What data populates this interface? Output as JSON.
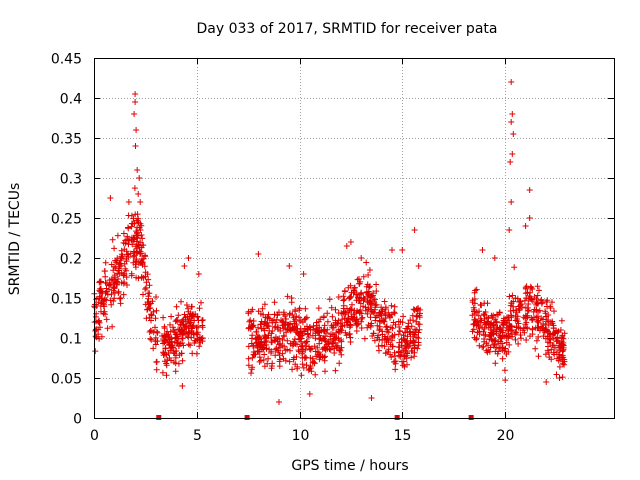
{
  "chart_data": {
    "type": "scatter",
    "title": "Day 033 of 2017, SRMTID for receiver pata",
    "xlabel": "GPS time / hours",
    "ylabel": "SRMTID / TECUs",
    "xlim": [
      0,
      25.3
    ],
    "ylim": [
      0,
      0.45
    ],
    "x_ticks": [
      0,
      5,
      10,
      15,
      20
    ],
    "x_tick_labels": [
      "0",
      "5",
      "10",
      "15",
      "20"
    ],
    "y_ticks": [
      0,
      0.05,
      0.1,
      0.15,
      0.2,
      0.25,
      0.3,
      0.35,
      0.4,
      0.45
    ],
    "y_tick_labels": [
      "0",
      "0.05",
      "0.1",
      "0.15",
      "0.2",
      "0.25",
      "0.3",
      "0.35",
      "0.4",
      "0.45"
    ],
    "grid": true,
    "marker": "+",
    "color": "#e00000",
    "gap_markers_x": [
      3.15,
      7.45,
      14.75,
      18.35
    ],
    "series": [
      {
        "name": "SRMTID",
        "segments": [
          {
            "start": 0.0,
            "end": 3.1,
            "profile": [
              [
                0.0,
                0.13
              ],
              [
                0.5,
                0.15
              ],
              [
                1.0,
                0.17
              ],
              [
                1.5,
                0.2
              ],
              [
                2.0,
                0.23
              ],
              [
                2.3,
                0.21
              ],
              [
                2.7,
                0.13
              ],
              [
                3.1,
                0.1
              ]
            ],
            "spread": 0.045,
            "peaks": [
              [
                2.0,
                0.405
              ],
              [
                2.0,
                0.395
              ],
              [
                1.95,
                0.38
              ],
              [
                2.05,
                0.36
              ],
              [
                2.02,
                0.34
              ],
              [
                2.1,
                0.31
              ],
              [
                2.2,
                0.3
              ],
              [
                2.15,
                0.28
              ],
              [
                2.25,
                0.27
              ],
              [
                1.7,
                0.27
              ],
              [
                0.8,
                0.275
              ]
            ]
          },
          {
            "start": 3.3,
            "end": 5.3,
            "profile": [
              [
                3.3,
                0.09
              ],
              [
                4.0,
                0.1
              ],
              [
                4.6,
                0.11
              ],
              [
                5.3,
                0.11
              ]
            ],
            "spread": 0.035,
            "peaks": [
              [
                4.6,
                0.2
              ],
              [
                4.4,
                0.19
              ],
              [
                5.1,
                0.18
              ],
              [
                4.3,
                0.04
              ]
            ]
          },
          {
            "start": 7.5,
            "end": 14.7,
            "profile": [
              [
                7.5,
                0.1
              ],
              [
                8.5,
                0.1
              ],
              [
                9.5,
                0.11
              ],
              [
                10.5,
                0.09
              ],
              [
                11.5,
                0.1
              ],
              [
                12.5,
                0.13
              ],
              [
                13.3,
                0.15
              ],
              [
                14.0,
                0.12
              ],
              [
                14.7,
                0.1
              ]
            ],
            "spread": 0.04,
            "peaks": [
              [
                8.0,
                0.205
              ],
              [
                9.5,
                0.19
              ],
              [
                10.2,
                0.18
              ],
              [
                12.3,
                0.215
              ],
              [
                12.5,
                0.22
              ],
              [
                13.0,
                0.2
              ],
              [
                14.5,
                0.21
              ],
              [
                9.0,
                0.02
              ],
              [
                13.5,
                0.025
              ],
              [
                10.5,
                0.03
              ]
            ]
          },
          {
            "start": 14.8,
            "end": 15.9,
            "profile": [
              [
                14.8,
                0.09
              ],
              [
                15.3,
                0.1
              ],
              [
                15.9,
                0.12
              ]
            ],
            "spread": 0.035,
            "peaks": [
              [
                15.6,
                0.235
              ],
              [
                15.0,
                0.21
              ],
              [
                15.8,
                0.19
              ]
            ]
          },
          {
            "start": 18.4,
            "end": 22.9,
            "profile": [
              [
                18.4,
                0.12
              ],
              [
                19.0,
                0.12
              ],
              [
                19.5,
                0.1
              ],
              [
                20.0,
                0.1
              ],
              [
                20.4,
                0.14
              ],
              [
                20.8,
                0.12
              ],
              [
                21.2,
                0.14
              ],
              [
                21.8,
                0.12
              ],
              [
                22.4,
                0.1
              ],
              [
                22.9,
                0.08
              ]
            ],
            "spread": 0.04,
            "peaks": [
              [
                20.3,
                0.42
              ],
              [
                20.35,
                0.38
              ],
              [
                20.3,
                0.37
              ],
              [
                20.4,
                0.355
              ],
              [
                20.35,
                0.33
              ],
              [
                20.25,
                0.32
              ],
              [
                21.2,
                0.285
              ],
              [
                20.3,
                0.27
              ],
              [
                21.2,
                0.25
              ],
              [
                20.2,
                0.235
              ],
              [
                21.0,
                0.24
              ],
              [
                18.9,
                0.21
              ],
              [
                19.5,
                0.2
              ],
              [
                22.0,
                0.045
              ]
            ]
          }
        ]
      }
    ]
  }
}
